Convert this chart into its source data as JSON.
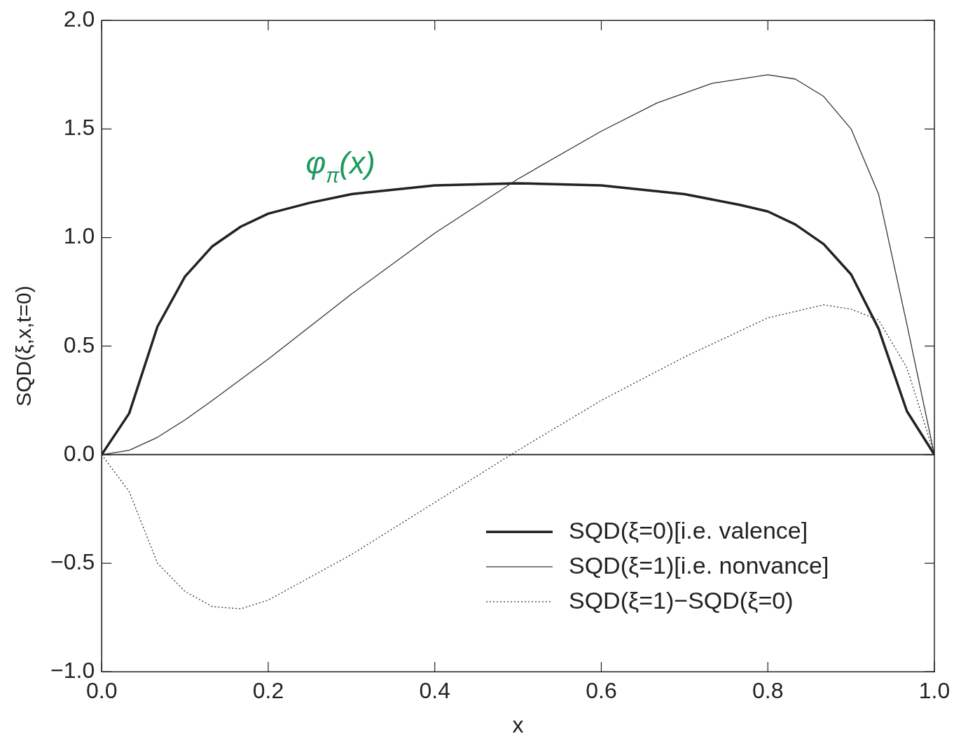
{
  "chart_data": {
    "type": "line",
    "xlabel": "x",
    "ylabel": "SQD(ξ,x,t=0)",
    "xlim": [
      0,
      1
    ],
    "ylim": [
      -1,
      2
    ],
    "xticks": [
      {
        "value": 0,
        "label": "0.0"
      },
      {
        "value": 0.2,
        "label": "0.2"
      },
      {
        "value": 0.4,
        "label": "0.4"
      },
      {
        "value": 0.6,
        "label": "0.6"
      },
      {
        "value": 0.8,
        "label": "0.8"
      },
      {
        "value": 1,
        "label": "1.0"
      }
    ],
    "yticks": [
      {
        "value": -1,
        "label": "−1.0"
      },
      {
        "value": -0.5,
        "label": "−0.5"
      },
      {
        "value": 0,
        "label": "0.0"
      },
      {
        "value": 0.5,
        "label": "0.5"
      },
      {
        "value": 1,
        "label": "1.0"
      },
      {
        "value": 1.5,
        "label": "1.5"
      },
      {
        "value": 2,
        "label": "2.0"
      }
    ],
    "grid": false,
    "legend": "bottom right",
    "marker": "none",
    "ref_lines": [
      {
        "axis": "y",
        "value": 0,
        "color": "#333333"
      }
    ],
    "annotations": [
      "φ$_{π}$(x)"
    ],
    "series": [
      {
        "name": "SQD(ξ=0)[i.e. valence]",
        "color": "#222222",
        "line_style": "solid",
        "x": [
          0,
          0.033,
          0.067,
          0.1,
          0.133,
          0.167,
          0.2,
          0.25,
          0.3,
          0.4,
          0.5,
          0.6,
          0.7,
          0.767,
          0.8,
          0.833,
          0.867,
          0.9,
          0.933,
          0.967,
          1
        ],
        "values": [
          0,
          0.19,
          0.59,
          0.82,
          0.96,
          1.05,
          1.11,
          1.16,
          1.2,
          1.24,
          1.25,
          1.24,
          1.2,
          1.15,
          1.12,
          1.06,
          0.97,
          0.83,
          0.58,
          0.2,
          0
        ]
      },
      {
        "name": "SQD(ξ=1)[i.e. nonvance]",
        "color": "#333333",
        "line_style": "solid",
        "x": [
          0,
          0.033,
          0.067,
          0.1,
          0.133,
          0.2,
          0.3,
          0.4,
          0.5,
          0.6,
          0.667,
          0.733,
          0.8,
          0.833,
          0.867,
          0.9,
          0.933,
          0.967,
          1
        ],
        "values": [
          0,
          0.02,
          0.08,
          0.16,
          0.25,
          0.44,
          0.74,
          1.02,
          1.27,
          1.49,
          1.62,
          1.71,
          1.75,
          1.73,
          1.65,
          1.5,
          1.2,
          0.6,
          0
        ]
      },
      {
        "name": "SQD(ξ=1)−SQD(ξ=0)",
        "color": "#333333",
        "line_style": "dotted",
        "x": [
          0,
          0.033,
          0.067,
          0.1,
          0.133,
          0.167,
          0.2,
          0.3,
          0.4,
          0.5,
          0.6,
          0.7,
          0.8,
          0.867,
          0.9,
          0.933,
          0.967,
          1
        ],
        "values": [
          0,
          -0.17,
          -0.5,
          -0.63,
          -0.7,
          -0.71,
          -0.67,
          -0.46,
          -0.22,
          0.02,
          0.25,
          0.45,
          0.63,
          0.69,
          0.67,
          0.62,
          0.4,
          0
        ]
      }
    ]
  }
}
